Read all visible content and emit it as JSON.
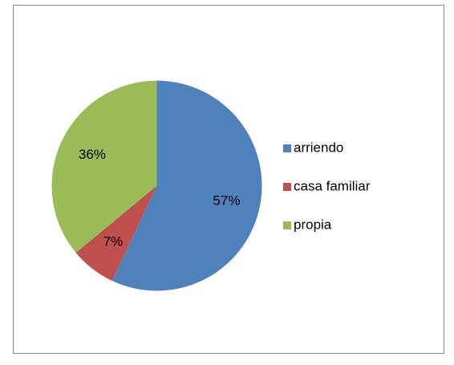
{
  "chart_data": {
    "type": "pie",
    "categories": [
      "arriendo",
      "casa familiar",
      "propia"
    ],
    "values": [
      57,
      7,
      36
    ],
    "value_labels": [
      "57%",
      "7%",
      "36%"
    ],
    "colors": [
      "#4f81bd",
      "#c0504d",
      "#9bbb59"
    ],
    "legend": "right"
  }
}
